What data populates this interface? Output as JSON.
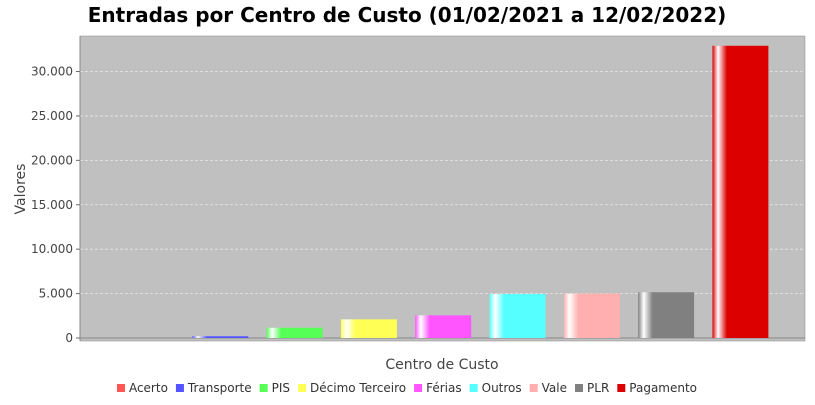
{
  "chart_data": {
    "type": "bar",
    "title": "Entradas por Centro de Custo (01/02/2021 a 12/02/2022)",
    "xlabel": "Centro de Custo",
    "ylabel": "Valores",
    "ylim": [
      0,
      34000
    ],
    "yticks": [
      {
        "value": 0,
        "label": "0"
      },
      {
        "value": 5000,
        "label": "5.000"
      },
      {
        "value": 10000,
        "label": "10.000"
      },
      {
        "value": 15000,
        "label": "15.000"
      },
      {
        "value": 20000,
        "label": "20.000"
      },
      {
        "value": 25000,
        "label": "25.000"
      },
      {
        "value": 30000,
        "label": "30.000"
      }
    ],
    "grid": true,
    "legend_position": "bottom",
    "series": [
      {
        "name": "Acerto",
        "value": 0,
        "color": "#ff5555"
      },
      {
        "name": "Transporte",
        "value": 200,
        "color": "#5555ff"
      },
      {
        "name": "PIS",
        "value": 1150,
        "color": "#55ff55"
      },
      {
        "name": "Décimo Terceiro",
        "value": 2100,
        "color": "#ffff55"
      },
      {
        "name": "Férias",
        "value": 2550,
        "color": "#ff55ff"
      },
      {
        "name": "Outros",
        "value": 4950,
        "color": "#55ffff"
      },
      {
        "name": "Vale",
        "value": 5000,
        "color": "#ffafaf"
      },
      {
        "name": "PLR",
        "value": 5150,
        "color": "#808080"
      },
      {
        "name": "Pagamento",
        "value": 32900,
        "color": "#dd0000"
      }
    ]
  }
}
